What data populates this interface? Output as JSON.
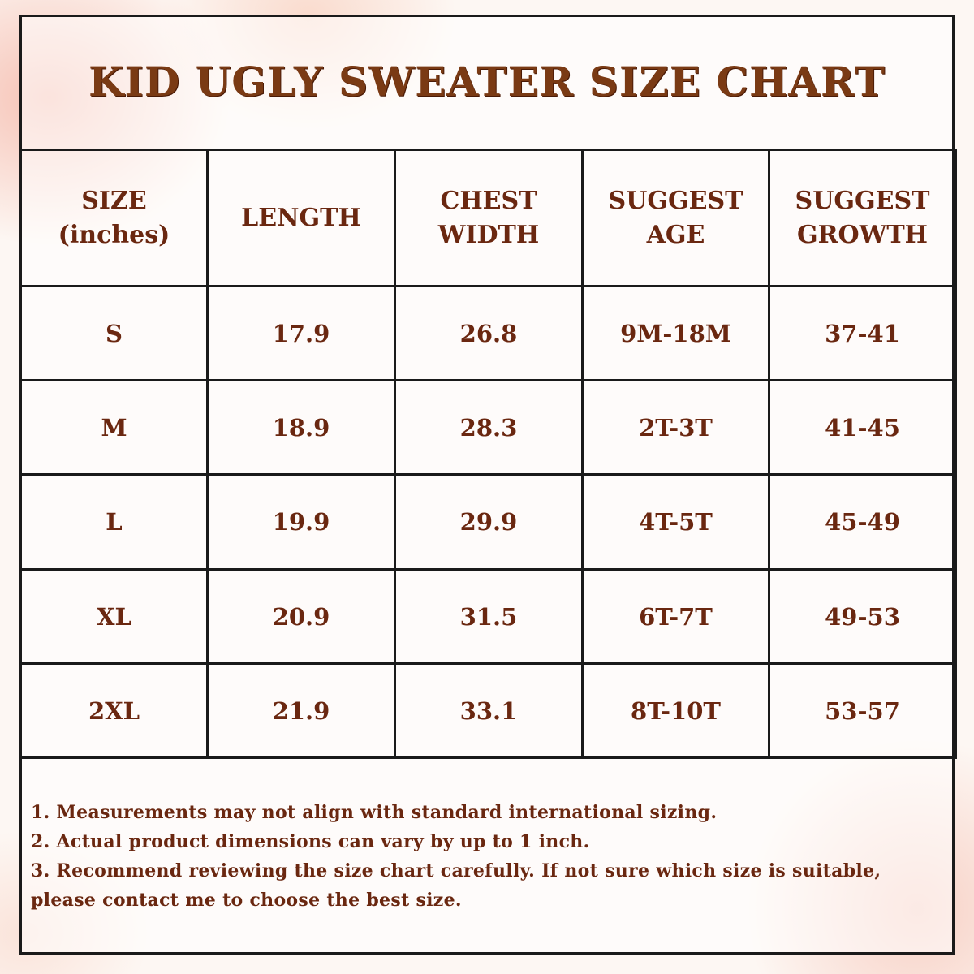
{
  "title": "KID UGLY SWEATER SIZE CHART",
  "table": {
    "header": [
      [
        "SIZE",
        "(inches)"
      ],
      [
        "LENGTH"
      ],
      [
        "CHEST",
        "WIDTH"
      ],
      [
        "SUGGEST",
        "AGE"
      ],
      [
        "SUGGEST",
        "GROWTH"
      ]
    ],
    "rows": [
      [
        "S",
        "17.9",
        "26.8",
        "9M-18M",
        "37-41"
      ],
      [
        "M",
        "18.9",
        "28.3",
        "2T-3T",
        "41-45"
      ],
      [
        "L",
        "19.9",
        "29.9",
        "4T-5T",
        "45-49"
      ],
      [
        "XL",
        "20.9",
        "31.5",
        "6T-7T",
        "49-53"
      ],
      [
        "2XL",
        "21.9",
        "33.1",
        "8T-10T",
        "53-57"
      ]
    ]
  },
  "notes": [
    "1. Measurements may not align with standard international sizing.",
    "2. Actual product dimensions can vary by up to 1 inch.",
    "3. Recommend reviewing the size chart carefully. If not sure which size is suitable, please contact me to choose the best size."
  ]
}
